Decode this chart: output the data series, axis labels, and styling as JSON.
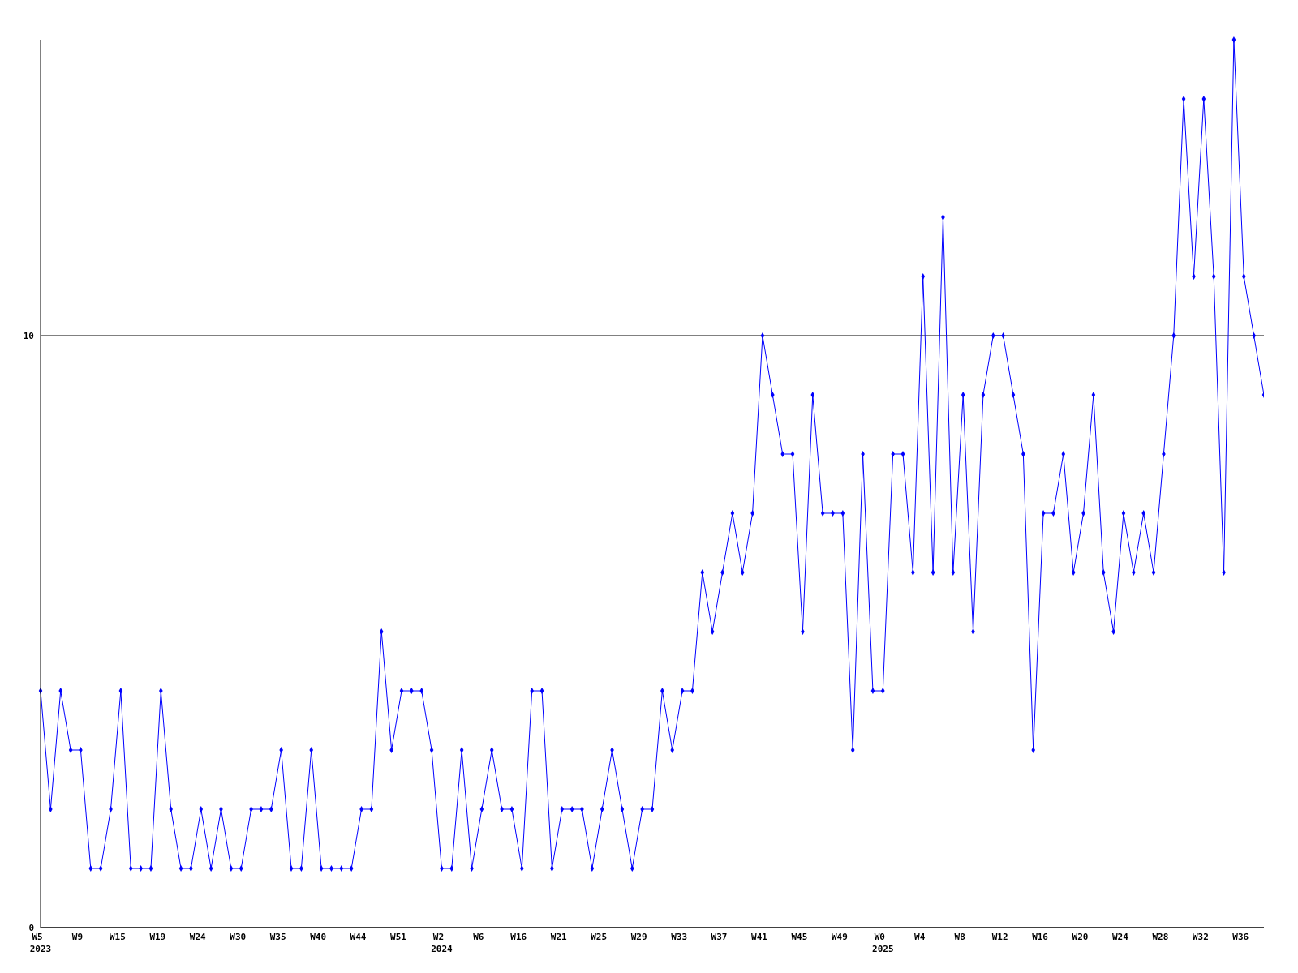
{
  "chart_data": {
    "type": "line",
    "categories": [
      "W5\n2023",
      null,
      null,
      null,
      "W9",
      null,
      null,
      null,
      "W15",
      null,
      null,
      null,
      "W19",
      null,
      null,
      null,
      "W24",
      null,
      null,
      null,
      "W30",
      null,
      null,
      null,
      "W35",
      null,
      null,
      null,
      "W40",
      null,
      null,
      null,
      "W44",
      null,
      null,
      null,
      "W51",
      null,
      null,
      null,
      "W2\n2024",
      null,
      null,
      null,
      "W6",
      null,
      null,
      null,
      "W16",
      null,
      null,
      null,
      "W21",
      null,
      null,
      null,
      "W25",
      null,
      null,
      null,
      "W29",
      null,
      null,
      null,
      "W33",
      null,
      null,
      null,
      "W37",
      null,
      null,
      null,
      "W41",
      null,
      null,
      null,
      "W45",
      null,
      null,
      null,
      "W49",
      null,
      null,
      null,
      "W0\n2025",
      null,
      null,
      null,
      "W4",
      null,
      null,
      null,
      "W8",
      null,
      null,
      null,
      "W12",
      null,
      null,
      null,
      "W16",
      null,
      null,
      null,
      "W20",
      null,
      null,
      null,
      "W24",
      null,
      null,
      null,
      "W28",
      null,
      null,
      null,
      "W32",
      null,
      null,
      null,
      "W36",
      null,
      null
    ],
    "series": [
      {
        "color": "#0000ff",
        "values": [
          4,
          2,
          4,
          3,
          3,
          1,
          1,
          2,
          4,
          1,
          1,
          1,
          4,
          2,
          1,
          1,
          2,
          1,
          2,
          1,
          1,
          2,
          2,
          2,
          3,
          1,
          1,
          3,
          1,
          1,
          1,
          1,
          2,
          2,
          5,
          3,
          4,
          4,
          4,
          3,
          1,
          1,
          3,
          1,
          2,
          3,
          2,
          2,
          1,
          4,
          4,
          1,
          2,
          2,
          2,
          1,
          2,
          3,
          2,
          1,
          2,
          2,
          4,
          3,
          4,
          4,
          6,
          5,
          6,
          7,
          6,
          7,
          10,
          9,
          8,
          8,
          5,
          9,
          7,
          7,
          7,
          3,
          8,
          4,
          4,
          8,
          8,
          6,
          11,
          6,
          12,
          6,
          9,
          5,
          9,
          10,
          10,
          9,
          8,
          3,
          7,
          7,
          8,
          6,
          7,
          9,
          6,
          5,
          7,
          6,
          7,
          6,
          8,
          10,
          14,
          11,
          14,
          11,
          6,
          15,
          11,
          10,
          9
        ]
      }
    ],
    "ylim": [
      0,
      15
    ],
    "yticks": [
      0,
      10
    ],
    "grid": "y",
    "marker": "diamond",
    "line_style": "solid"
  }
}
